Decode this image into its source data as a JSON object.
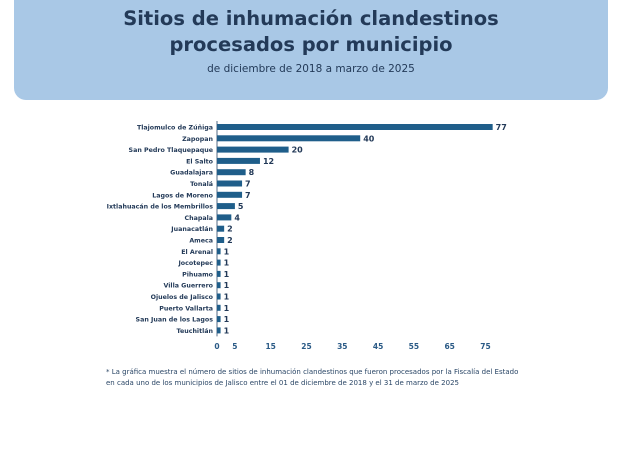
{
  "header": {
    "title_line1": "Sitios de inhumación clandestinos",
    "title_line2": "procesados por municipio",
    "subtitle": "de diciembre de 2018 a marzo de 2025"
  },
  "chart_data": {
    "type": "bar",
    "orientation": "horizontal",
    "title": "Sitios de inhumación clandestinos procesados por municipio",
    "subtitle": "de diciembre de 2018 a marzo de 2025",
    "categories": [
      "Tlajomulco de Zúñiga",
      "Zapopan",
      "San Pedro Tlaquepaque",
      "El Salto",
      "Guadalajara",
      "Tonalá",
      "Lagos de Moreno",
      "Ixtlahuacán de los Membrillos",
      "Chapala",
      "Juanacatlán",
      "Ameca",
      "El Arenal",
      "Jocotepec",
      "Pihuamo",
      "Villa Guerrero",
      "Ojuelos de Jalisco",
      "Puerto Vallarta",
      "San Juan de los Lagos",
      "Teuchitlán"
    ],
    "values": [
      77,
      40,
      20,
      12,
      8,
      7,
      7,
      5,
      4,
      2,
      2,
      1,
      1,
      1,
      1,
      1,
      1,
      1,
      1
    ],
    "xticks": [
      0,
      5,
      15,
      25,
      35,
      45,
      55,
      65,
      75
    ],
    "xlim": [
      0,
      80
    ],
    "grid": false,
    "bar_color": "#1f5e8a"
  },
  "footnote": "* La gráfica muestra el número de sitios de inhumación clandestinos que fueron procesados por la Fiscalía del Estado en cada uno de los municipios de Jalisco entre el 01 de diciembre de 2018 y el 31 de marzo de 2025"
}
